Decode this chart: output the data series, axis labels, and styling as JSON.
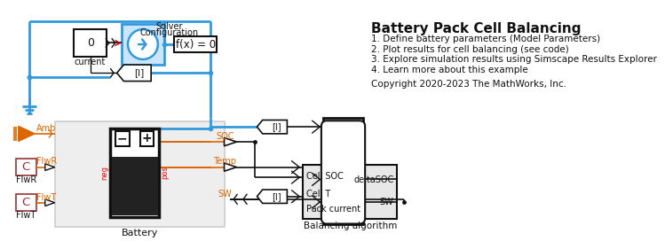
{
  "title": "Battery Pack Cell Balancing",
  "items": [
    "1. Define battery parameters (Model Parameters)",
    "2. Plot results for cell balancing (see code)",
    "3. Explore simulation results using Simscape Results Explorer",
    "4. Learn more about this example"
  ],
  "copyright": "Copyright 2020-2023 The MathWorks, Inc.",
  "blue": "#3399dd",
  "orange": "#dd6600",
  "dark_red": "#993333",
  "black": "#111111",
  "white": "#ffffff",
  "light_gray": "#f0f0f0",
  "mid_gray": "#cccccc",
  "bg": "#ffffff",
  "title_fs": 11,
  "item_fs": 7.5,
  "label_fs": 7,
  "small_fs": 6.5
}
